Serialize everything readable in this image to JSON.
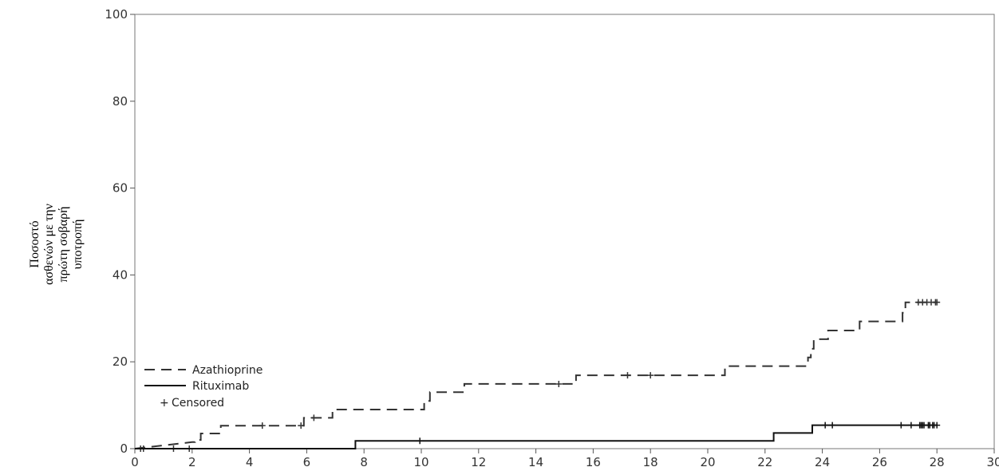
{
  "chart_data": {
    "type": "line",
    "title": "",
    "xlabel": "",
    "ylabel_lines": [
      "Ποσοστό",
      "ασθενών  με  την",
      "πρώτη    σοβαρή",
      "υποτροπή"
    ],
    "xlim": [
      0,
      30
    ],
    "ylim": [
      0,
      100
    ],
    "xticks": [
      0,
      2,
      4,
      6,
      8,
      10,
      12,
      14,
      16,
      18,
      20,
      22,
      24,
      26,
      28,
      30
    ],
    "yticks": [
      0,
      20,
      40,
      60,
      80,
      100
    ],
    "grid": false,
    "legend_position": "bottom-left",
    "series": [
      {
        "name": "Azathioprine",
        "style": "dashed",
        "color": "#333333",
        "step_points": [
          [
            0,
            0
          ],
          [
            2.0,
            1.5
          ],
          [
            2.1,
            1.5
          ],
          [
            2.1,
            2.0
          ],
          [
            2.3,
            2.0
          ],
          [
            2.3,
            3.5
          ],
          [
            3.0,
            3.5
          ],
          [
            3.0,
            5.3
          ],
          [
            5.9,
            5.3
          ],
          [
            5.9,
            7.1
          ],
          [
            6.9,
            7.1
          ],
          [
            6.9,
            9.0
          ],
          [
            10.1,
            9.0
          ],
          [
            10.1,
            11.0
          ],
          [
            10.3,
            11.0
          ],
          [
            10.3,
            13.0
          ],
          [
            11.5,
            13.0
          ],
          [
            11.5,
            14.9
          ],
          [
            15.4,
            14.9
          ],
          [
            15.4,
            16.9
          ],
          [
            20.6,
            16.9
          ],
          [
            20.6,
            19.0
          ],
          [
            23.5,
            19.0
          ],
          [
            23.5,
            21.0
          ],
          [
            23.6,
            21.0
          ],
          [
            23.6,
            23.0
          ],
          [
            23.7,
            23.0
          ],
          [
            23.7,
            25.2
          ],
          [
            24.2,
            25.2
          ],
          [
            24.2,
            27.2
          ],
          [
            25.3,
            27.2
          ],
          [
            25.3,
            29.3
          ],
          [
            26.8,
            29.3
          ],
          [
            26.8,
            31.3
          ],
          [
            26.9,
            31.3
          ],
          [
            26.9,
            33.7
          ],
          [
            28.0,
            33.7
          ]
        ],
        "censored": [
          [
            0.2,
            0
          ],
          [
            0.3,
            0
          ],
          [
            1.35,
            0
          ],
          [
            1.9,
            0
          ],
          [
            4.45,
            5.3
          ],
          [
            5.8,
            5.3
          ],
          [
            6.25,
            7.1
          ],
          [
            14.8,
            14.9
          ],
          [
            17.2,
            16.9
          ],
          [
            18.0,
            16.9
          ],
          [
            27.35,
            33.7
          ],
          [
            27.5,
            33.7
          ],
          [
            27.65,
            33.7
          ],
          [
            27.8,
            33.7
          ],
          [
            27.95,
            33.7
          ],
          [
            28.0,
            33.7
          ]
        ]
      },
      {
        "name": "Rituximab",
        "style": "solid",
        "color": "#111111",
        "step_points": [
          [
            0,
            0
          ],
          [
            7.7,
            0
          ],
          [
            7.7,
            1.8
          ],
          [
            22.3,
            1.8
          ],
          [
            22.3,
            3.6
          ],
          [
            23.65,
            3.6
          ],
          [
            23.65,
            5.4
          ],
          [
            28.0,
            5.4
          ]
        ],
        "censored": [
          [
            9.95,
            1.8
          ],
          [
            24.1,
            5.4
          ],
          [
            24.35,
            5.4
          ],
          [
            26.75,
            5.4
          ],
          [
            27.1,
            5.4
          ],
          [
            27.4,
            5.4
          ],
          [
            27.45,
            5.4
          ],
          [
            27.5,
            5.4
          ],
          [
            27.55,
            5.4
          ],
          [
            27.7,
            5.4
          ],
          [
            27.75,
            5.4
          ],
          [
            27.85,
            5.4
          ],
          [
            27.9,
            5.4
          ],
          [
            28.0,
            5.4
          ]
        ]
      }
    ],
    "legend": {
      "entries": [
        "Azathioprine",
        "Rituximab"
      ],
      "censored_symbol": "+",
      "censored_label": "Censored"
    }
  }
}
